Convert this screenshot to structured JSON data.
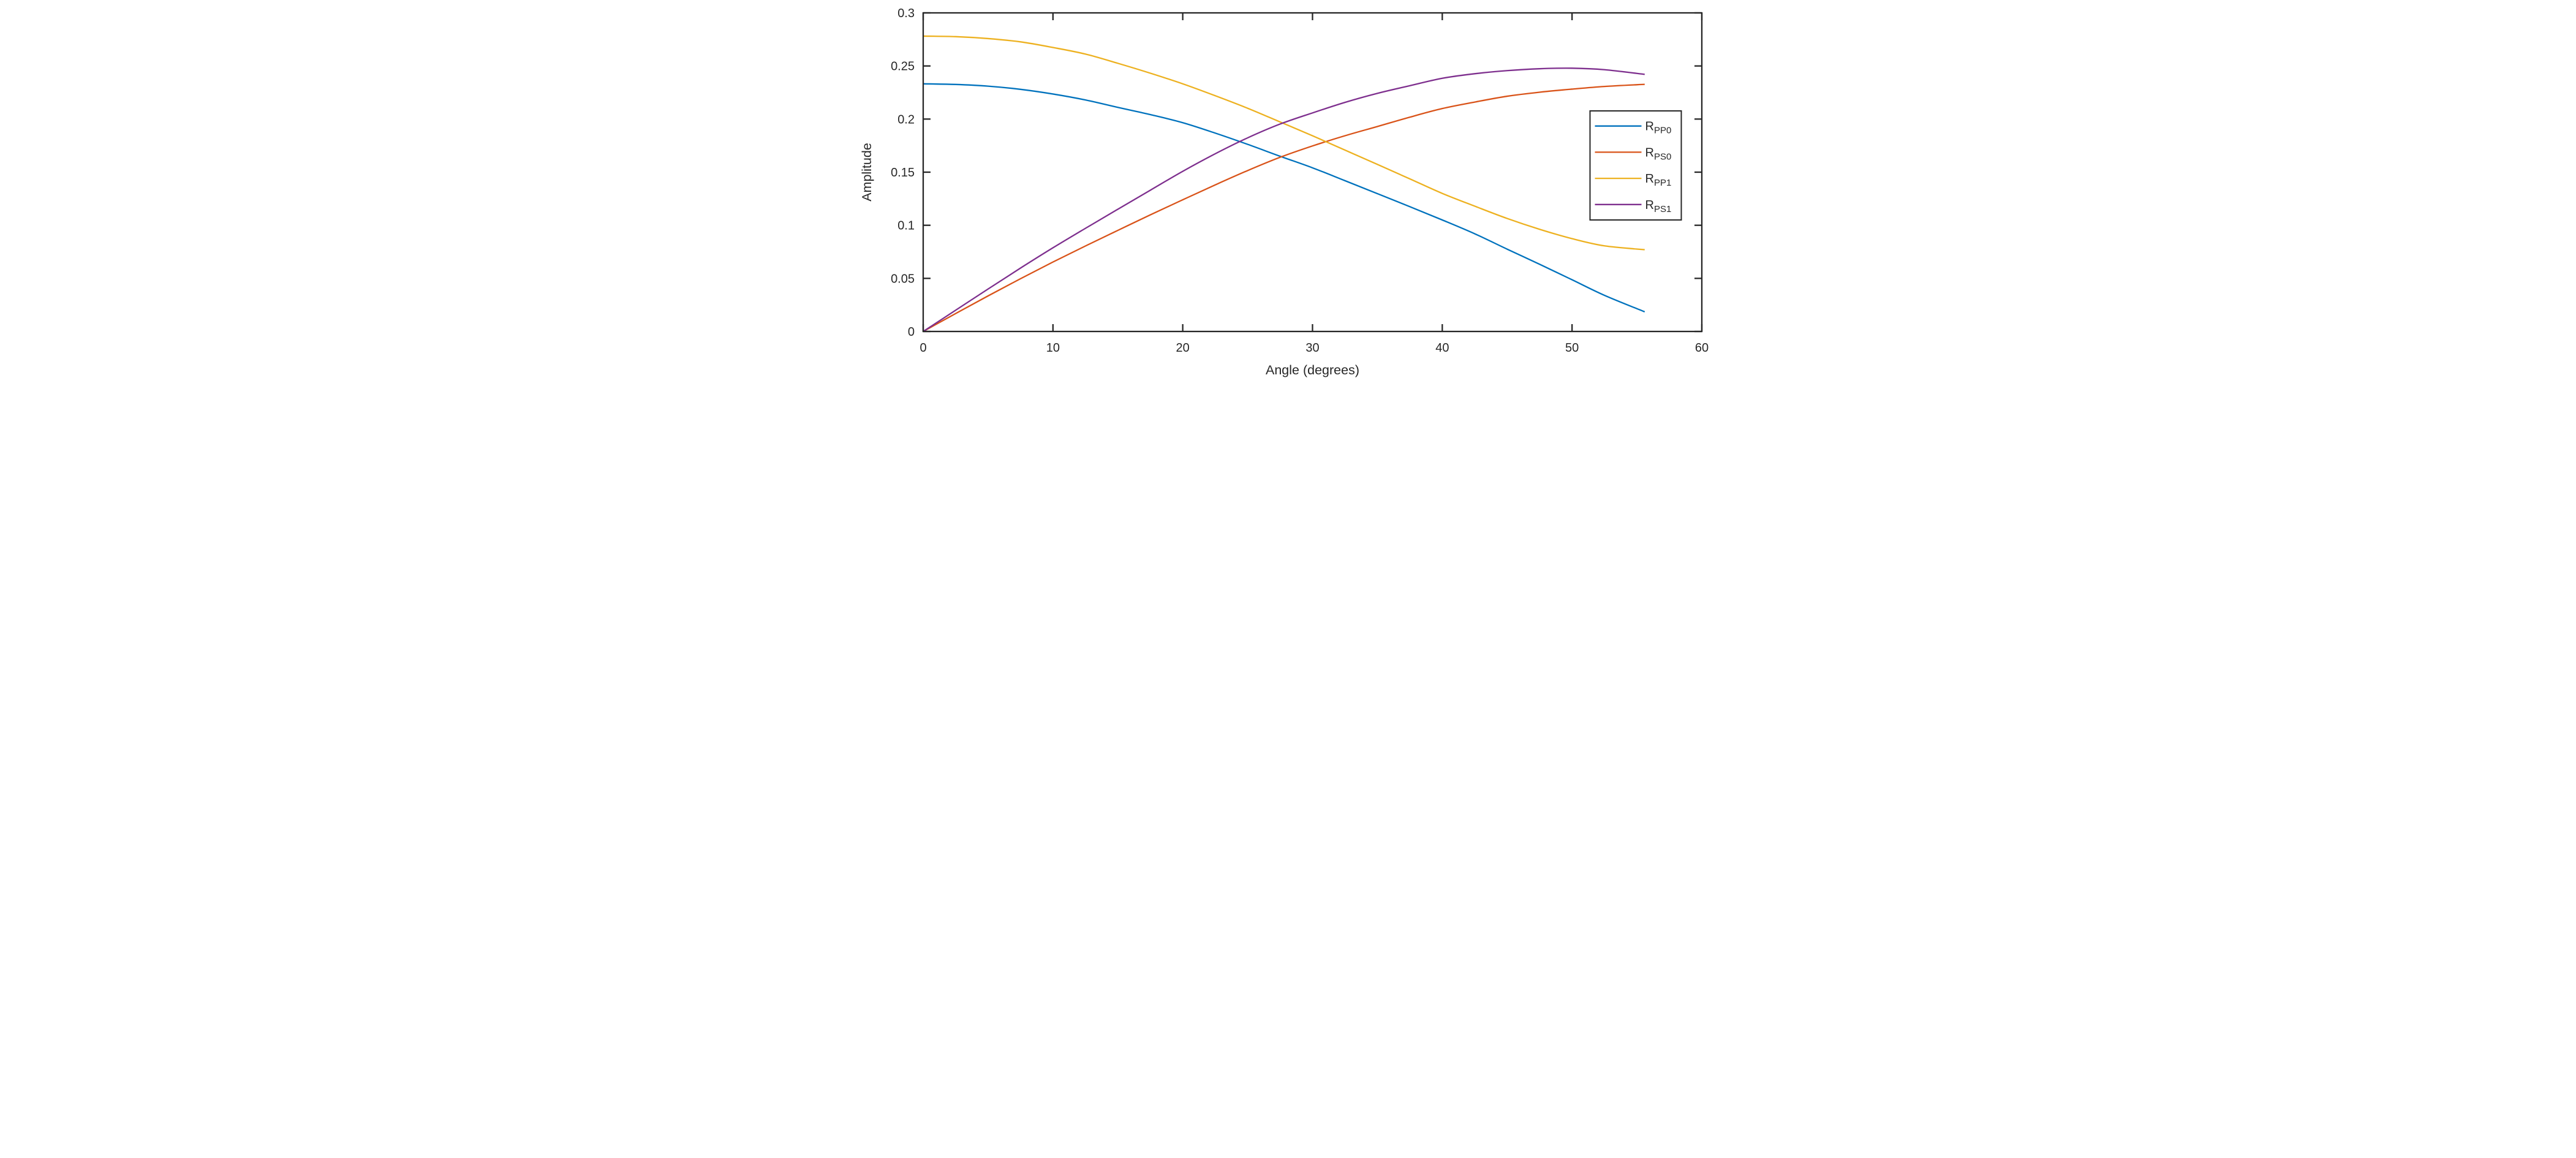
{
  "chart_data": {
    "type": "line",
    "title": "",
    "xlabel": "Angle (degrees)",
    "ylabel": "Amplitude",
    "xlim": [
      0,
      60
    ],
    "ylim": [
      0,
      0.3
    ],
    "grid": false,
    "box": true,
    "legend_position": "right-inside",
    "axis_color": "#262626",
    "background_color": "#ffffff",
    "xticks": [
      0,
      10,
      20,
      30,
      40,
      50,
      60
    ],
    "xtick_labels": [
      "0",
      "10",
      "20",
      "30",
      "40",
      "50",
      "60"
    ],
    "yticks": [
      0,
      0.05,
      0.1,
      0.15,
      0.2,
      0.25,
      0.3
    ],
    "ytick_labels": [
      "0",
      "0.05",
      "0.1",
      "0.15",
      "0.2",
      "0.25",
      "0.3"
    ],
    "x": [
      0,
      2.5,
      5,
      7.5,
      10,
      12.5,
      15,
      17.5,
      20,
      22.5,
      25,
      27.5,
      30,
      32.5,
      35,
      37.5,
      40,
      42.5,
      45,
      47.5,
      50,
      52.5,
      55.6
    ],
    "series": [
      {
        "name": "R_PP0",
        "legend_main": "R",
        "legend_sub": "PP0",
        "color": "#0072BD",
        "values": [
          0.2332,
          0.2326,
          0.231,
          0.228,
          0.2236,
          0.218,
          0.211,
          0.2042,
          0.1966,
          0.1868,
          0.1762,
          0.165,
          0.1541,
          0.142,
          0.1298,
          0.1175,
          0.105,
          0.092,
          0.0775,
          0.0633,
          0.0487,
          0.034,
          0.0185
        ]
      },
      {
        "name": "R_PS0",
        "legend_main": "R",
        "legend_sub": "PS0",
        "color": "#D95319",
        "values": [
          0.0,
          0.0169,
          0.0335,
          0.0497,
          0.0654,
          0.0805,
          0.0952,
          0.1098,
          0.124,
          0.138,
          0.1515,
          0.164,
          0.1747,
          0.1843,
          0.193,
          0.2018,
          0.2099,
          0.216,
          0.2215,
          0.2253,
          0.2282,
          0.2307,
          0.2327
        ]
      },
      {
        "name": "R_PP1",
        "legend_main": "R",
        "legend_sub": "PP1",
        "color": "#EDB120",
        "values": [
          0.2781,
          0.2776,
          0.2758,
          0.2727,
          0.2674,
          0.2612,
          0.2525,
          0.2432,
          0.2332,
          0.222,
          0.2102,
          0.1973,
          0.1843,
          0.1708,
          0.1573,
          0.1437,
          0.13,
          0.118,
          0.1064,
          0.0962,
          0.0874,
          0.0806,
          0.077
        ]
      },
      {
        "name": "R_PS1",
        "legend_main": "R",
        "legend_sub": "PS1",
        "color": "#7E2F8E",
        "values": [
          0.0,
          0.02,
          0.04,
          0.0597,
          0.0788,
          0.0971,
          0.1151,
          0.133,
          0.1508,
          0.1673,
          0.1823,
          0.1953,
          0.2058,
          0.2157,
          0.2242,
          0.2314,
          0.2384,
          0.2427,
          0.2456,
          0.2474,
          0.2479,
          0.2465,
          0.2421
        ]
      }
    ]
  }
}
